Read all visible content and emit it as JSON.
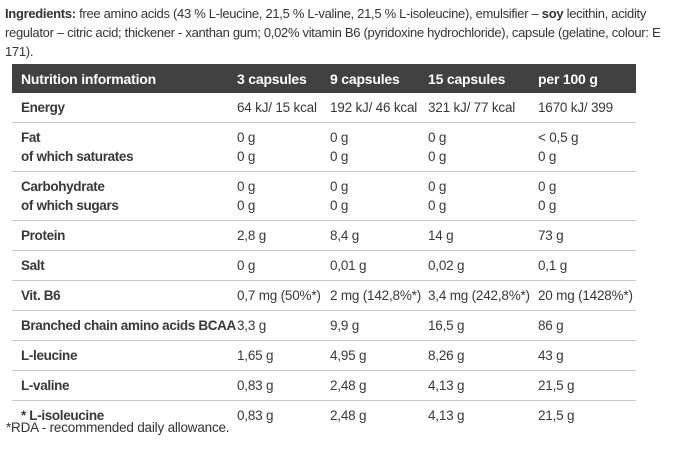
{
  "ingredients": {
    "label": "Ingredients:",
    "segment1": " free amino acids (43 % L-leucine, 21,5 % L-valine, 21,5 % L-isoleucine), emulsifier – ",
    "bold_word": "soy",
    "segment2": " lecithin, acidity regulator – citric acid; thickener - xanthan gum;  0,02% vitamin B6 (pyridoxine hydrochloride), capsule (gelatine, colour: E 171)."
  },
  "table": {
    "headers": [
      "Nutrition information",
      "3 capsules",
      "9 capsules",
      "15 capsules",
      "per 100 g"
    ],
    "rows": [
      {
        "lines": [
          {
            "label": "Energy",
            "values": [
              "64 kJ/ 15 kcal",
              "192 kJ/ 46 kcal",
              "321 kJ/ 77 kcal",
              "1670 kJ/ 399"
            ]
          }
        ]
      },
      {
        "lines": [
          {
            "label": "Fat",
            "values": [
              "0 g",
              "0 g",
              "0 g",
              "< 0,5 g"
            ]
          },
          {
            "label": "of which saturates",
            "values": [
              "0 g",
              "0 g",
              "0 g",
              "0 g"
            ]
          }
        ]
      },
      {
        "lines": [
          {
            "label": "Carbohydrate",
            "values": [
              "0 g",
              "0 g",
              "0 g",
              "0 g"
            ]
          },
          {
            "label": "of which sugars",
            "values": [
              "0 g",
              "0 g",
              "0 g",
              "0 g"
            ]
          }
        ]
      },
      {
        "lines": [
          {
            "label": "Protein",
            "values": [
              "2,8 g",
              "8,4 g",
              "14 g",
              "73 g"
            ]
          }
        ]
      },
      {
        "lines": [
          {
            "label": "Salt",
            "values": [
              "0 g",
              "0,01 g",
              "0,02 g",
              "0,1 g"
            ]
          }
        ]
      },
      {
        "lines": [
          {
            "label": "Vit. B6",
            "values": [
              "0,7 mg (50%*)",
              "2 mg (142,8%*)",
              "3,4 mg (242,8%*)",
              "20 mg (1428%*)"
            ]
          }
        ]
      },
      {
        "lines": [
          {
            "label": "Branched chain amino acids BCAA",
            "values": [
              "3,3 g",
              "9,9 g",
              "16,5 g",
              "86 g"
            ]
          }
        ]
      },
      {
        "lines": [
          {
            "label": "L-leucine",
            "values": [
              "1,65 g",
              "4,95 g",
              "8,26 g",
              "43 g"
            ]
          }
        ]
      },
      {
        "lines": [
          {
            "label": "L-valine",
            "values": [
              "0,83 g",
              "2,48 g",
              "4,13 g",
              "21,5 g"
            ]
          }
        ]
      },
      {
        "lines": [
          {
            "label": "* L-isoleucine",
            "values": [
              "0,83 g",
              "2,48 g",
              "4,13 g",
              "21,5 g"
            ]
          }
        ]
      }
    ]
  },
  "footnote": "*RDA - recommended daily allowance.",
  "colors": {
    "header_bg": "#414141",
    "header_text": "#ffffff",
    "body_text": "#383838",
    "divider": "#c9c9c9",
    "background": "#ffffff"
  }
}
